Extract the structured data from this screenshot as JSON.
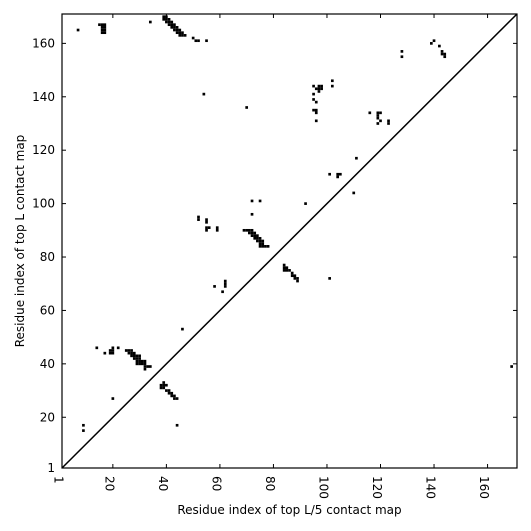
{
  "chart_data": {
    "type": "scatter",
    "title": "",
    "xlabel": "Residue index of top L/5 contact map",
    "ylabel": "Residue index of top L contact map",
    "xlim": [
      1,
      171
    ],
    "ylim": [
      1,
      171
    ],
    "x_ticks": [
      1,
      20,
      40,
      60,
      80,
      100,
      120,
      140,
      160
    ],
    "y_ticks": [
      1,
      20,
      40,
      60,
      80,
      100,
      120,
      140,
      160
    ],
    "x_tick_labels": [
      "1",
      "20",
      "40",
      "60",
      "80",
      "100",
      "120",
      "140",
      "160"
    ],
    "y_tick_labels": [
      "1",
      "20",
      "40",
      "60",
      "80",
      "100",
      "120",
      "140",
      "160"
    ],
    "grid": false,
    "diagonal_line": true,
    "marker": "square",
    "series": [
      {
        "values": [
          [
            7,
            165
          ],
          [
            15,
            167
          ],
          [
            16,
            167
          ],
          [
            17,
            167
          ],
          [
            16,
            166
          ],
          [
            17,
            166
          ],
          [
            16,
            165
          ],
          [
            17,
            165
          ],
          [
            16,
            164
          ],
          [
            17,
            164
          ],
          [
            34,
            168
          ],
          [
            39,
            170
          ],
          [
            40,
            170
          ],
          [
            39,
            169
          ],
          [
            40,
            169
          ],
          [
            41,
            169
          ],
          [
            40,
            168
          ],
          [
            41,
            168
          ],
          [
            42,
            168
          ],
          [
            41,
            167
          ],
          [
            42,
            167
          ],
          [
            43,
            167
          ],
          [
            42,
            166
          ],
          [
            43,
            166
          ],
          [
            44,
            166
          ],
          [
            43,
            165
          ],
          [
            44,
            165
          ],
          [
            45,
            165
          ],
          [
            44,
            164
          ],
          [
            45,
            164
          ],
          [
            46,
            164
          ],
          [
            45,
            163
          ],
          [
            46,
            163
          ],
          [
            47,
            163
          ],
          [
            50,
            162
          ],
          [
            51,
            161
          ],
          [
            52,
            161
          ],
          [
            55,
            161
          ],
          [
            54,
            141
          ],
          [
            70,
            136
          ],
          [
            95,
            144
          ],
          [
            97,
            144
          ],
          [
            98,
            144
          ],
          [
            96,
            143
          ],
          [
            97,
            143
          ],
          [
            98,
            143
          ],
          [
            97,
            142
          ],
          [
            95,
            141
          ],
          [
            102,
            146
          ],
          [
            102,
            144
          ],
          [
            95,
            139
          ],
          [
            96,
            138
          ],
          [
            95,
            135
          ],
          [
            96,
            135
          ],
          [
            96,
            134
          ],
          [
            96,
            131
          ],
          [
            116,
            134
          ],
          [
            119,
            134
          ],
          [
            120,
            134
          ],
          [
            119,
            133
          ],
          [
            119,
            132
          ],
          [
            120,
            131
          ],
          [
            119,
            130
          ],
          [
            123,
            131
          ],
          [
            123,
            130
          ],
          [
            128,
            157
          ],
          [
            128,
            155
          ],
          [
            139,
            160
          ],
          [
            140,
            161
          ],
          [
            142,
            159
          ],
          [
            143,
            157
          ],
          [
            143,
            156
          ],
          [
            144,
            156
          ],
          [
            144,
            155
          ],
          [
            111,
            117
          ],
          [
            101,
            111
          ],
          [
            104,
            111
          ],
          [
            105,
            111
          ],
          [
            104,
            110
          ],
          [
            110,
            104
          ],
          [
            92,
            100
          ],
          [
            72,
            101
          ],
          [
            75,
            101
          ],
          [
            72,
            96
          ],
          [
            52,
            95
          ],
          [
            52,
            94
          ],
          [
            55,
            94
          ],
          [
            55,
            93
          ],
          [
            55,
            91
          ],
          [
            56,
            91
          ],
          [
            55,
            90
          ],
          [
            59,
            91
          ],
          [
            59,
            90
          ],
          [
            69,
            90
          ],
          [
            70,
            90
          ],
          [
            71,
            90
          ],
          [
            72,
            90
          ],
          [
            71,
            89
          ],
          [
            72,
            89
          ],
          [
            73,
            89
          ],
          [
            72,
            88
          ],
          [
            73,
            88
          ],
          [
            74,
            88
          ],
          [
            73,
            87
          ],
          [
            74,
            87
          ],
          [
            75,
            87
          ],
          [
            74,
            86
          ],
          [
            75,
            86
          ],
          [
            76,
            86
          ],
          [
            75,
            85
          ],
          [
            76,
            85
          ],
          [
            75,
            84
          ],
          [
            76,
            84
          ],
          [
            77,
            84
          ],
          [
            78,
            84
          ],
          [
            84,
            77
          ],
          [
            84,
            76
          ],
          [
            85,
            76
          ],
          [
            84,
            75
          ],
          [
            85,
            75
          ],
          [
            86,
            75
          ],
          [
            87,
            74
          ],
          [
            87,
            73
          ],
          [
            88,
            73
          ],
          [
            88,
            72
          ],
          [
            89,
            72
          ],
          [
            89,
            71
          ],
          [
            101,
            72
          ],
          [
            62,
            71
          ],
          [
            62,
            70
          ],
          [
            58,
            69
          ],
          [
            62,
            69
          ],
          [
            61,
            67
          ],
          [
            46,
            53
          ],
          [
            14,
            46
          ],
          [
            20,
            46
          ],
          [
            22,
            46
          ],
          [
            19,
            45
          ],
          [
            20,
            45
          ],
          [
            25,
            45
          ],
          [
            26,
            45
          ],
          [
            27,
            45
          ],
          [
            17,
            44
          ],
          [
            19,
            44
          ],
          [
            20,
            44
          ],
          [
            26,
            44
          ],
          [
            27,
            44
          ],
          [
            28,
            44
          ],
          [
            27,
            43
          ],
          [
            28,
            43
          ],
          [
            29,
            43
          ],
          [
            30,
            43
          ],
          [
            28,
            42
          ],
          [
            29,
            42
          ],
          [
            30,
            42
          ],
          [
            29,
            41
          ],
          [
            30,
            41
          ],
          [
            31,
            41
          ],
          [
            32,
            41
          ],
          [
            29,
            40
          ],
          [
            30,
            40
          ],
          [
            31,
            40
          ],
          [
            32,
            40
          ],
          [
            32,
            39
          ],
          [
            33,
            39
          ],
          [
            34,
            39
          ],
          [
            32,
            38
          ],
          [
            39,
            33
          ],
          [
            38,
            32
          ],
          [
            39,
            32
          ],
          [
            40,
            32
          ],
          [
            38,
            31
          ],
          [
            39,
            31
          ],
          [
            40,
            30
          ],
          [
            41,
            30
          ],
          [
            41,
            29
          ],
          [
            42,
            29
          ],
          [
            42,
            28
          ],
          [
            43,
            28
          ],
          [
            43,
            27
          ],
          [
            44,
            27
          ],
          [
            20,
            27
          ],
          [
            44,
            17
          ],
          [
            9,
            17
          ],
          [
            9,
            15
          ],
          [
            169,
            39
          ]
        ]
      }
    ]
  }
}
